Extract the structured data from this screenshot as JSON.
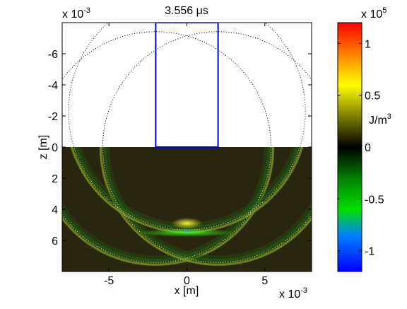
{
  "chart_data": {
    "type": "heatmap",
    "title": "3.556 μs",
    "xlabel": "x [m]",
    "ylabel": "z [m]",
    "x_multiplier": "x 10",
    "x_multiplier_exp": "-3",
    "y_multiplier": "x 10",
    "y_multiplier_exp": "-3",
    "xlim": [
      -8,
      8
    ],
    "ylim": [
      -8,
      8
    ],
    "y_reversed": true,
    "x_ticks": [
      -5,
      0,
      5
    ],
    "x_tick_labels": [
      "-5",
      "0",
      "5"
    ],
    "y_ticks": [
      -6,
      -4,
      -2,
      0,
      2,
      4,
      6
    ],
    "y_tick_labels": [
      "-6",
      "-4",
      "-2",
      "0",
      "2",
      "4",
      "6"
    ],
    "upper_region": {
      "z_range": [
        -8,
        0
      ],
      "color": "#ffffff",
      "description_hidden": true
    },
    "lower_region": {
      "z_range": [
        0,
        8
      ],
      "background": "#28260e"
    },
    "transducer_rect": {
      "x": [
        -2,
        2
      ],
      "z": [
        -8,
        0
      ],
      "color": "#0000d0"
    },
    "wavefront_circles": [
      {
        "cx": -2.0,
        "cz": 0.0,
        "r": 7.4
      },
      {
        "cx": 2.0,
        "cz": 0.0,
        "r": 7.4
      },
      {
        "cx": 0.0,
        "cz": -2.3,
        "r": 7.6
      }
    ],
    "hotspots": [
      {
        "x": 0,
        "z": 4.9,
        "value": 0.6
      },
      {
        "x": 0,
        "z": 5.4,
        "value": -1.0
      },
      {
        "x": 0,
        "z": 5.5,
        "value": -0.5
      }
    ],
    "colorbar": {
      "label": "J/m",
      "label_exp": "3",
      "multiplier": "x 10",
      "multiplier_exp": "5",
      "range": [
        -1.2,
        1.2
      ],
      "ticks": [
        -1,
        -0.5,
        0,
        0.5,
        1
      ],
      "tick_labels": [
        "-1",
        "-0.5",
        "0",
        "0.5",
        "1"
      ],
      "stops": [
        {
          "v": -1.2,
          "color": "#0000ff"
        },
        {
          "v": -0.85,
          "color": "#0080ff"
        },
        {
          "v": -0.6,
          "color": "#00e000"
        },
        {
          "v": -0.3,
          "color": "#008000"
        },
        {
          "v": 0,
          "color": "#000000"
        },
        {
          "v": 0.3,
          "color": "#808000"
        },
        {
          "v": 0.6,
          "color": "#ffff00"
        },
        {
          "v": 0.9,
          "color": "#ff8000"
        },
        {
          "v": 1.2,
          "color": "#ff0000"
        }
      ]
    }
  }
}
